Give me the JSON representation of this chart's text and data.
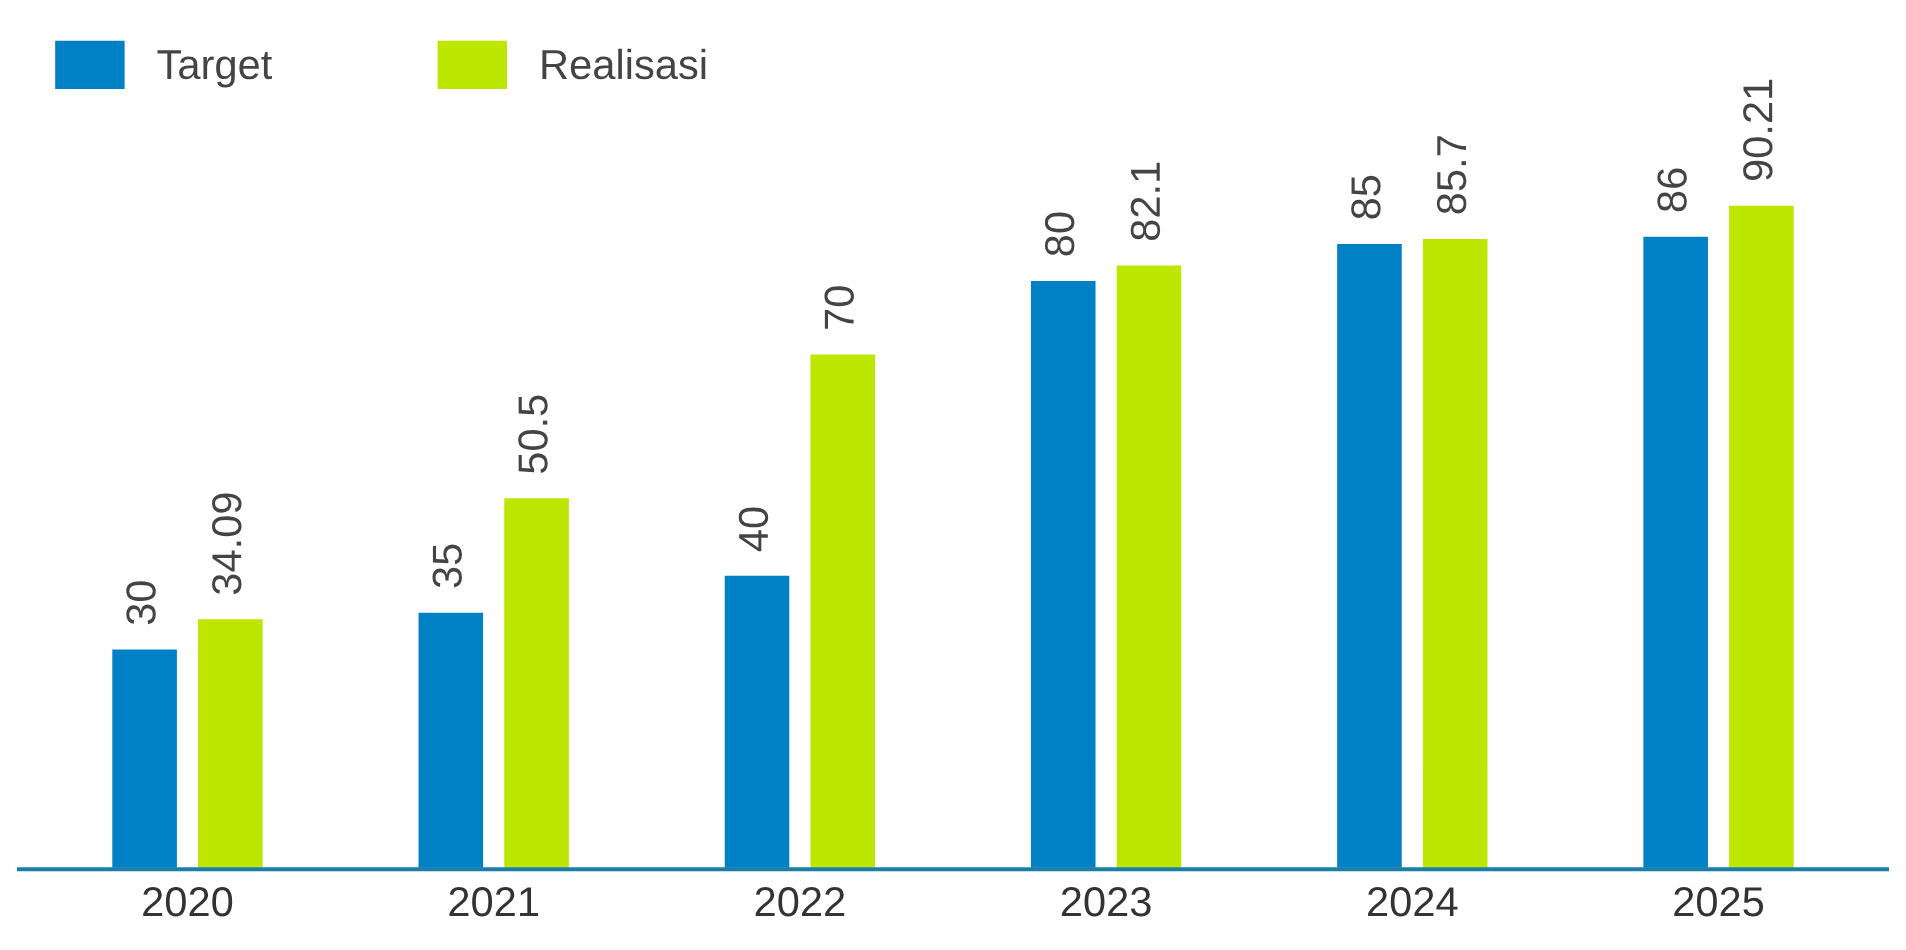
{
  "chart_data": {
    "type": "bar",
    "categories": [
      "2020",
      "2021",
      "2022",
      "2023",
      "2024",
      "2025"
    ],
    "series": [
      {
        "name": "Target",
        "color": "#0081c6",
        "values": [
          30,
          35,
          40,
          80,
          85,
          86
        ]
      },
      {
        "name": "Realisasi",
        "color": "#bde600",
        "values": [
          34.09,
          50.5,
          70,
          82.1,
          85.7,
          90.21
        ]
      }
    ],
    "data_labels": true,
    "legend": "top left",
    "grid": false
  }
}
